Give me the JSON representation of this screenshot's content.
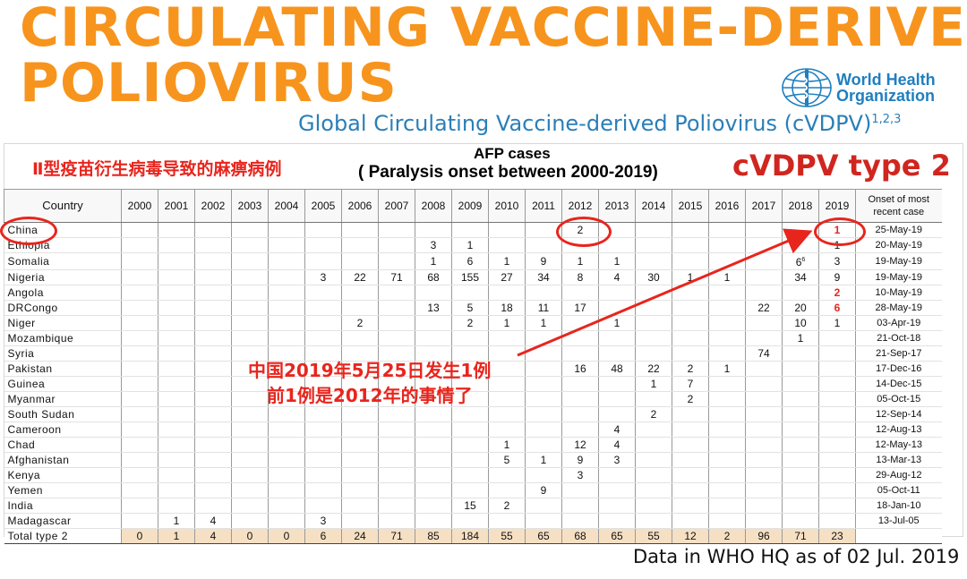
{
  "title_line1": "CIRCULATING VACCINE-DERIVED",
  "title_line2": "POLIOVIRUS",
  "logo": {
    "line1": "World Health",
    "line2": "Organization",
    "icon": "who-emblem-icon"
  },
  "subtitle": "Global Circulating Vaccine-derived Poliovirus (cVDPV)",
  "subtitle_sup": "1,2,3",
  "chinese_header": "Ⅱ型疫苗衍生病毒导致的麻痹病例",
  "afp_title": "AFP cases",
  "afp_subtitle": "( Paralysis onset between 2000-2019)",
  "type_label": "cVDPV type 2",
  "table": {
    "country_header": "Country",
    "onset_header": "Onset of most recent case",
    "years": [
      "2000",
      "2001",
      "2002",
      "2003",
      "2004",
      "2005",
      "2006",
      "2007",
      "2008",
      "2009",
      "2010",
      "2011",
      "2012",
      "2013",
      "2014",
      "2015",
      "2016",
      "2017",
      "2018",
      "2019"
    ],
    "rows": [
      {
        "country": "China",
        "cells": [
          "",
          "",
          "",
          "",
          "",
          "",
          "",
          "",
          "",
          "",
          "",
          "",
          "2",
          "",
          "",
          "",
          "",
          "",
          "",
          "1"
        ],
        "onset": "25-May-19"
      },
      {
        "country": "Ethiopia",
        "cells": [
          "",
          "",
          "",
          "",
          "",
          "",
          "",
          "",
          "3",
          "1",
          "",
          "",
          "",
          "",
          "",
          "",
          "",
          "",
          "",
          "1"
        ],
        "onset": "20-May-19"
      },
      {
        "country": "Somalia",
        "cells": [
          "",
          "",
          "",
          "",
          "",
          "",
          "",
          "",
          "1",
          "6",
          "1",
          "9",
          "1",
          "1",
          "",
          "",
          "",
          "",
          "6",
          "3"
        ],
        "onset": "19-May-19"
      },
      {
        "country": "Nigeria",
        "cells": [
          "",
          "",
          "",
          "",
          "",
          "3",
          "22",
          "71",
          "68",
          "155",
          "27",
          "34",
          "8",
          "4",
          "30",
          "1",
          "1",
          "",
          "34",
          "9"
        ],
        "onset": "19-May-19"
      },
      {
        "country": "Angola",
        "cells": [
          "",
          "",
          "",
          "",
          "",
          "",
          "",
          "",
          "",
          "",
          "",
          "",
          "",
          "",
          "",
          "",
          "",
          "",
          "",
          "2"
        ],
        "onset": "10-May-19"
      },
      {
        "country": "DRCongo",
        "cells": [
          "",
          "",
          "",
          "",
          "",
          "",
          "",
          "",
          "13",
          "5",
          "18",
          "11",
          "17",
          "",
          "",
          "",
          "",
          "22",
          "20",
          "6"
        ],
        "onset": "28-May-19"
      },
      {
        "country": "Niger",
        "cells": [
          "",
          "",
          "",
          "",
          "",
          "",
          "2",
          "",
          "",
          "2",
          "1",
          "1",
          "",
          "1",
          "",
          "",
          "",
          "",
          "10",
          "1"
        ],
        "onset": "03-Apr-19"
      },
      {
        "country": "Mozambique",
        "cells": [
          "",
          "",
          "",
          "",
          "",
          "",
          "",
          "",
          "",
          "",
          "",
          "",
          "",
          "",
          "",
          "",
          "",
          "",
          "1",
          ""
        ],
        "onset": "21-Oct-18"
      },
      {
        "country": "Syria",
        "cells": [
          "",
          "",
          "",
          "",
          "",
          "",
          "",
          "",
          "",
          "",
          "",
          "",
          "",
          "",
          "",
          "",
          "",
          "74",
          "",
          ""
        ],
        "onset": "21-Sep-17"
      },
      {
        "country": "Pakistan",
        "cells": [
          "",
          "",
          "",
          "",
          "",
          "",
          "",
          "",
          "",
          "",
          "",
          "",
          "16",
          "48",
          "22",
          "2",
          "1",
          "",
          "",
          ""
        ],
        "onset": "17-Dec-16"
      },
      {
        "country": "Guinea",
        "cells": [
          "",
          "",
          "",
          "",
          "",
          "",
          "",
          "",
          "",
          "",
          "",
          "",
          "",
          "",
          "1",
          "7",
          "",
          "",
          "",
          ""
        ],
        "onset": "14-Dec-15"
      },
      {
        "country": "Myanmar",
        "cells": [
          "",
          "",
          "",
          "",
          "",
          "",
          "",
          "",
          "",
          "",
          "",
          "",
          "",
          "",
          "",
          "2",
          "",
          "",
          "",
          ""
        ],
        "onset": "05-Oct-15"
      },
      {
        "country": "South Sudan",
        "cells": [
          "",
          "",
          "",
          "",
          "",
          "",
          "",
          "",
          "",
          "",
          "",
          "",
          "",
          "",
          "2",
          "",
          "",
          "",
          "",
          ""
        ],
        "onset": "12-Sep-14"
      },
      {
        "country": "Cameroon",
        "cells": [
          "",
          "",
          "",
          "",
          "",
          "",
          "",
          "",
          "",
          "",
          "",
          "",
          "",
          "4",
          "",
          "",
          "",
          "",
          "",
          ""
        ],
        "onset": "12-Aug-13"
      },
      {
        "country": "Chad",
        "cells": [
          "",
          "",
          "",
          "",
          "",
          "",
          "",
          "",
          "",
          "",
          "1",
          "",
          "12",
          "4",
          "",
          "",
          "",
          "",
          "",
          ""
        ],
        "onset": "12-May-13"
      },
      {
        "country": "Afghanistan",
        "cells": [
          "",
          "",
          "",
          "",
          "",
          "",
          "",
          "",
          "",
          "",
          "5",
          "1",
          "9",
          "3",
          "",
          "",
          "",
          "",
          "",
          ""
        ],
        "onset": "13-Mar-13"
      },
      {
        "country": "Kenya",
        "cells": [
          "",
          "",
          "",
          "",
          "",
          "",
          "",
          "",
          "",
          "",
          "",
          "",
          "3",
          "",
          "",
          "",
          "",
          "",
          "",
          ""
        ],
        "onset": "29-Aug-12"
      },
      {
        "country": "Yemen",
        "cells": [
          "",
          "",
          "",
          "",
          "",
          "",
          "",
          "",
          "",
          "",
          "",
          "9",
          "",
          "",
          "",
          "",
          "",
          "",
          "",
          ""
        ],
        "onset": "05-Oct-11"
      },
      {
        "country": "India",
        "cells": [
          "",
          "",
          "",
          "",
          "",
          "",
          "",
          "",
          "",
          "15",
          "2",
          "",
          "",
          "",
          "",
          "",
          "",
          "",
          "",
          ""
        ],
        "onset": "18-Jan-10"
      },
      {
        "country": "Madagascar",
        "cells": [
          "",
          "1",
          "4",
          "",
          "",
          "3",
          "",
          "",
          "",
          "",
          "",
          "",
          "",
          "",
          "",
          "",
          "",
          "",
          "",
          ""
        ],
        "onset": "13-Jul-05"
      }
    ],
    "total": {
      "label": "Total type 2",
      "cells": [
        "0",
        "1",
        "4",
        "0",
        "0",
        "6",
        "24",
        "71",
        "85",
        "184",
        "55",
        "65",
        "68",
        "65",
        "55",
        "12",
        "2",
        "96",
        "71",
        "23"
      ]
    },
    "footnote_somalia_2018": "6"
  },
  "annotation_line1": "中国2019年5月25日发生1例",
  "annotation_line2": "前1例是2012年的事情了",
  "footer": "Data in WHO HQ as of 02 Jul. 2019",
  "colors": {
    "title": "#f7941d",
    "subtitle": "#2a7fb8",
    "annotation": "#e8251d",
    "total_row": "#f6e0c4"
  }
}
